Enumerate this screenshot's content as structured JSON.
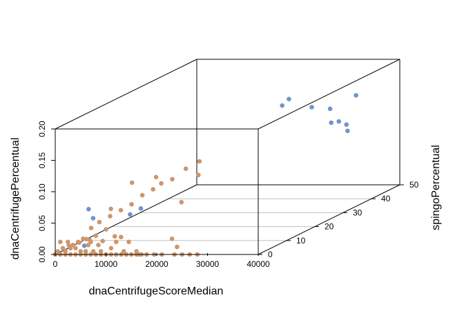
{
  "chart_data": {
    "type": "scatter",
    "xlabel": "dnaCentrifugeScoreMedian",
    "ylabel": "spingoPercentual",
    "zlabel": "dnaCentrifugePercentual",
    "xlim": [
      0,
      40000
    ],
    "ylim": [
      0,
      50
    ],
    "zlim": [
      0,
      0.2
    ],
    "x_ticks": [
      0,
      10000,
      20000,
      30000,
      40000
    ],
    "y_ticks": [
      0,
      10,
      20,
      30,
      40,
      50
    ],
    "z_ticks": [
      0.0,
      0.05,
      0.1,
      0.15,
      0.2
    ],
    "colors": {
      "blue": "#6f94cd",
      "tan": "#cd966c",
      "frame": "#000000",
      "grid": "#c0c0c0"
    },
    "points_blue": [
      [
        21500,
        44,
        0.15
      ],
      [
        18500,
        47,
        0.133
      ],
      [
        26000,
        44,
        0.137
      ],
      [
        28500,
        46,
        0.13
      ],
      [
        29000,
        45.5,
        0.109
      ],
      [
        30500,
        45.5,
        0.111
      ],
      [
        32000,
        45.5,
        0.106
      ],
      [
        32500,
        45,
        0.097
      ],
      [
        32500,
        48,
        0.147
      ],
      [
        1000,
        10,
        0.05
      ],
      [
        3000,
        8,
        0.04
      ],
      [
        7500,
        13,
        0.035
      ],
      [
        8500,
        15,
        0.04
      ],
      [
        3500,
        4,
        0.005
      ]
    ],
    "points_tan": [
      [
        0,
        0,
        0
      ],
      [
        1000,
        0,
        0
      ],
      [
        2000,
        0,
        0
      ],
      [
        3000,
        0,
        0
      ],
      [
        4000,
        0,
        0
      ],
      [
        5000,
        0,
        0
      ],
      [
        6000,
        0,
        0
      ],
      [
        7000,
        0,
        0
      ],
      [
        8000,
        0,
        0
      ],
      [
        9000,
        0,
        0
      ],
      [
        10000,
        0,
        0
      ],
      [
        11000,
        0,
        0
      ],
      [
        12000,
        0,
        0
      ],
      [
        13000,
        0,
        0
      ],
      [
        14000,
        0,
        0
      ],
      [
        15000,
        0,
        0
      ],
      [
        16000,
        0,
        0
      ],
      [
        16500,
        0,
        0
      ],
      [
        17000,
        0,
        0
      ],
      [
        18000,
        0,
        0
      ],
      [
        19500,
        0,
        0
      ],
      [
        21000,
        0,
        0
      ],
      [
        23500,
        0,
        0
      ],
      [
        25000,
        0,
        0
      ],
      [
        26500,
        0,
        0
      ],
      [
        28000,
        0,
        0
      ],
      [
        500,
        0,
        0.005
      ],
      [
        1500,
        0,
        0.01
      ],
      [
        3000,
        0,
        0.01
      ],
      [
        2000,
        0,
        0.005
      ],
      [
        5000,
        0,
        0.005
      ],
      [
        4000,
        0,
        0.01
      ],
      [
        6000,
        0,
        0.005
      ],
      [
        7500,
        0,
        0.005
      ],
      [
        9000,
        0,
        0.005
      ],
      [
        11000,
        0,
        0.01
      ],
      [
        8500,
        0,
        0.015
      ],
      [
        3500,
        0,
        0.015
      ],
      [
        13500,
        0,
        0.005
      ],
      [
        16000,
        0,
        0.005
      ],
      [
        2500,
        0,
        0.02
      ],
      [
        4500,
        0,
        0.02
      ],
      [
        6500,
        0,
        0.015
      ],
      [
        5500,
        0,
        0.025
      ],
      [
        1000,
        0,
        0.02
      ],
      [
        7000,
        0,
        0.02
      ],
      [
        10000,
        0,
        0.04
      ],
      [
        14500,
        0,
        0.02
      ],
      [
        12000,
        0,
        0.02
      ],
      [
        8000,
        0,
        0.03
      ],
      [
        24000,
        0,
        0.012
      ],
      [
        23000,
        0,
        0.025
      ],
      [
        1000,
        3,
        0.008
      ],
      [
        2500,
        4,
        0.01
      ],
      [
        4000,
        5,
        0.012
      ],
      [
        6000,
        6,
        0.008
      ],
      [
        8500,
        8,
        0.01
      ],
      [
        9500,
        4,
        0.02
      ],
      [
        5000,
        2,
        0.02
      ],
      [
        1500,
        10,
        0.02
      ],
      [
        2000,
        12,
        0.025
      ],
      [
        3000,
        14,
        0.03
      ],
      [
        4000,
        16,
        0.035
      ],
      [
        5000,
        18,
        0.04
      ],
      [
        6000,
        20,
        0.05
      ],
      [
        7000,
        22,
        0.055
      ],
      [
        7500,
        24,
        0.06
      ],
      [
        8000,
        27,
        0.06
      ],
      [
        9000,
        30,
        0.07
      ],
      [
        10000,
        33,
        0.075
      ],
      [
        9000,
        11,
        0.09
      ],
      [
        6500,
        8,
        0.055
      ],
      [
        11500,
        15,
        0.09
      ],
      [
        16500,
        21,
        0.08
      ],
      [
        16500,
        15,
        0.05
      ]
    ]
  }
}
